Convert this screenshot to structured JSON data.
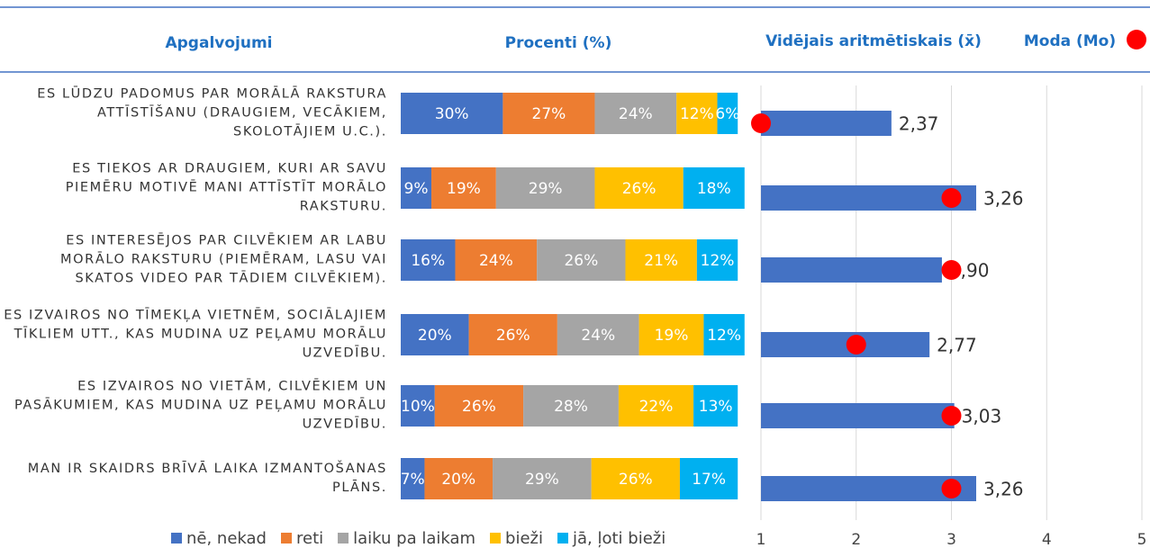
{
  "chart_data": [
    {
      "type": "stacked_barh",
      "category_header": "Apgalvojumi",
      "title": "Procenti (%)",
      "categories": [
        "ES LŪDZU PADOMUS PAR MORĀLĀ RAKSTURA ATTĪSTĪŠANU (DRAUGIEM, VECĀKIEM, SKOLOTĀJIEM U.C.).",
        "ES TIEKOS AR DRAUGIEM, KURI AR SAVU PIEMĒRU MOTIVĒ MANI ATTĪSTĪT MORĀLO RAKSTURU.",
        "ES INTERESĒJOS PAR CILVĒKIEM AR LABU MORĀLO RAKSTURU (PIEMĒRAM, LASU VAI SKATOS VIDEO PAR TĀDIEM CILVĒKIEM).",
        "ES IZVAIROS NO TĪMEKĻA VIETNĒM, SOCIĀLAJIEM TĪKLIEM UTT., KAS MUDINA UZ PEĻAMU MORĀLU UZVEDĪBU.",
        "ES IZVAIROS NO VIETĀM, CILVĒKIEM UN PASĀKUMIEM, KAS MUDINA UZ PEĻAMU MORĀLU UZVEDĪBU.",
        "MAN IR SKAIDRS BRĪVĀ LAIKA IZMANTOŠANAS PLĀNS."
      ],
      "xlim": [
        0,
        100
      ],
      "series": [
        {
          "name": "nē, nekad",
          "color": "#4472c4",
          "values": [
            30,
            9,
            16,
            20,
            10,
            7
          ],
          "value_labels": [
            "30%",
            "9%",
            "16%",
            "20%",
            "10%",
            "7%"
          ]
        },
        {
          "name": "reti",
          "color": "#ed7d31",
          "values": [
            27,
            19,
            24,
            26,
            26,
            20
          ],
          "value_labels": [
            "27%",
            "19%",
            "24%",
            "26%",
            "26%",
            "20%"
          ]
        },
        {
          "name": "laiku pa laikam",
          "color": "#a5a5a5",
          "values": [
            24,
            29,
            26,
            24,
            28,
            29
          ],
          "value_labels": [
            "24%",
            "29%",
            "26%",
            "24%",
            "28%",
            "29%"
          ]
        },
        {
          "name": "bieži",
          "color": "#ffc000",
          "values": [
            12,
            26,
            21,
            19,
            22,
            26
          ],
          "value_labels": [
            "12%",
            "26%",
            "21%",
            "19%",
            "22%",
            "26%"
          ]
        },
        {
          "name": "jā, ļoti bieži",
          "color": "#00b0f0",
          "values": [
            6,
            18,
            12,
            12,
            13,
            17
          ],
          "value_labels": [
            "6%",
            "18%",
            "12%",
            "12%",
            "13%",
            "17%"
          ]
        }
      ]
    },
    {
      "type": "barh_mode",
      "title": "Vidējais aritmētiskais (x̄)",
      "mode_label": "Moda (Mo)",
      "color": "#4472c4",
      "mode_color": "#ff0000",
      "values": [
        2.37,
        3.26,
        2.9,
        2.77,
        3.03,
        3.26
      ],
      "value_labels": [
        "2,37",
        "3,26",
        "2,90",
        "2,77",
        "3,03",
        "3,26"
      ],
      "modes": [
        1,
        3,
        3,
        2,
        3,
        3
      ],
      "xlim": [
        1,
        5
      ],
      "xticks": [
        1,
        2,
        3,
        4,
        5
      ],
      "grid": true
    }
  ]
}
